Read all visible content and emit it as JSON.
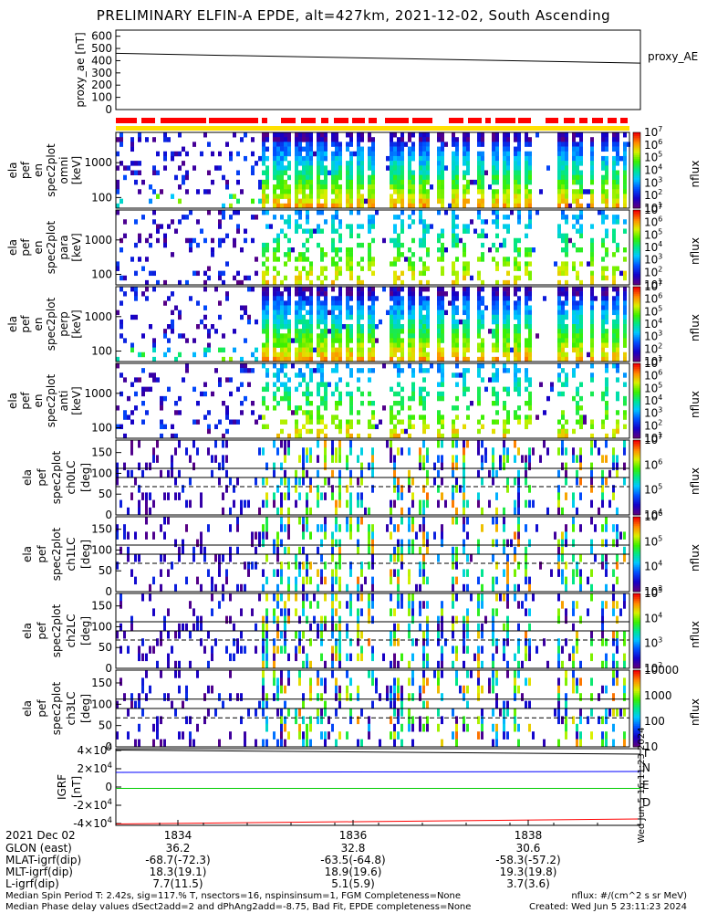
{
  "title": "PRELIMINARY ELFIN-A EPDE, alt=427km, 2021-12-02, South Ascending",
  "chart_data": [
    {
      "type": "line",
      "panel": "proxy_ae",
      "ylabel": [
        "proxy_ae",
        "[nT]"
      ],
      "yticks": [
        "0",
        "100",
        "200",
        "300",
        "400",
        "500",
        "600"
      ],
      "ylim": [
        0,
        650
      ],
      "series": [
        {
          "name": "proxy_AE",
          "x": [
            0,
            1
          ],
          "values": [
            460,
            380
          ],
          "color": "#000000"
        }
      ]
    },
    {
      "type": "heatmap",
      "panel": "ela pef en spec2plot omni",
      "ylabel": [
        "ela",
        "pef",
        "en",
        "spec2plot",
        "omni",
        "[keV]"
      ],
      "yticks": [
        "100",
        "1000"
      ],
      "colorbar": {
        "label": "nflux",
        "ticks": [
          "10^1",
          "10^2",
          "10^3",
          "10^4",
          "10^5",
          "10^6",
          "10^7"
        ]
      }
    },
    {
      "type": "heatmap",
      "panel": "ela pef en spec2plot para",
      "ylabel": [
        "ela",
        "pef",
        "en",
        "spec2plot",
        "para",
        "[keV]"
      ],
      "yticks": [
        "100",
        "1000"
      ],
      "colorbar": {
        "label": "nflux",
        "ticks": [
          "10^1",
          "10^2",
          "10^3",
          "10^4",
          "10^5",
          "10^6",
          "10^7"
        ]
      }
    },
    {
      "type": "heatmap",
      "panel": "ela pef en spec2plot perp",
      "ylabel": [
        "ela",
        "pef",
        "en",
        "spec2plot",
        "perp",
        "[keV]"
      ],
      "yticks": [
        "100",
        "1000"
      ],
      "colorbar": {
        "label": "nflux",
        "ticks": [
          "10^1",
          "10^2",
          "10^3",
          "10^4",
          "10^5",
          "10^6",
          "10^7"
        ]
      }
    },
    {
      "type": "heatmap",
      "panel": "ela pef en spec2plot anti",
      "ylabel": [
        "ela",
        "pef",
        "en",
        "spec2plot",
        "anti",
        "[keV]"
      ],
      "yticks": [
        "100",
        "1000"
      ],
      "colorbar": {
        "label": "nflux",
        "ticks": [
          "10^1",
          "10^2",
          "10^3",
          "10^4",
          "10^5",
          "10^6",
          "10^7"
        ]
      }
    },
    {
      "type": "heatmap",
      "panel": "ela pef spec2plot ch0LC",
      "ylabel": [
        "ela",
        "pef",
        "spec2plot",
        "ch0LC",
        "[deg]"
      ],
      "yticks": [
        "0",
        "50",
        "100",
        "150"
      ],
      "colorbar": {
        "label": "nflux",
        "ticks": [
          "10^4",
          "10^5",
          "10^6",
          "10^7"
        ]
      }
    },
    {
      "type": "heatmap",
      "panel": "ela pef spec2plot ch1LC",
      "ylabel": [
        "ela",
        "pef",
        "spec2plot",
        "ch1LC",
        "[deg]"
      ],
      "yticks": [
        "0",
        "50",
        "100",
        "150"
      ],
      "colorbar": {
        "label": "nflux",
        "ticks": [
          "10^3",
          "10^4",
          "10^5",
          "10^6"
        ]
      }
    },
    {
      "type": "heatmap",
      "panel": "ela pef spec2plot ch2LC",
      "ylabel": [
        "ela",
        "pef",
        "spec2plot",
        "ch2LC",
        "[deg]"
      ],
      "yticks": [
        "0",
        "50",
        "100",
        "150"
      ],
      "colorbar": {
        "label": "nflux",
        "ticks": [
          "10^2",
          "10^3",
          "10^4",
          "10^5"
        ]
      }
    },
    {
      "type": "heatmap",
      "panel": "ela pef spec2plot ch3LC",
      "ylabel": [
        "ela",
        "pef",
        "spec2plot",
        "ch3LC",
        "[deg]"
      ],
      "yticks": [
        "0",
        "50",
        "100",
        "150"
      ],
      "colorbar": {
        "label": "nflux",
        "ticks": [
          "10",
          "100",
          "1000",
          "10000"
        ]
      }
    },
    {
      "type": "line",
      "panel": "IGRF",
      "ylabel": [
        "IGRF",
        "[nT]"
      ],
      "yticks": [
        "-4×10^4",
        "-2×10^4",
        "0",
        "2×10^4",
        "4×10^4"
      ],
      "ylim": [
        -42000,
        42000
      ],
      "series": [
        {
          "name": "T",
          "x": [
            0,
            1
          ],
          "values": [
            40500,
            36000
          ],
          "color": "#000000"
        },
        {
          "name": "N",
          "x": [
            0,
            1
          ],
          "values": [
            16000,
            17000
          ],
          "color": "#0000ff"
        },
        {
          "name": "E",
          "x": [
            0,
            1
          ],
          "values": [
            -1500,
            -1500
          ],
          "color": "#00cc00"
        },
        {
          "name": "D",
          "x": [
            0,
            1
          ],
          "values": [
            -40500,
            -35000
          ],
          "color": "#ff0000"
        }
      ]
    }
  ],
  "side_label": "Wed Jun  5 16:11:23 2024",
  "xaxis": {
    "row_labels": [
      "2021 Dec 02",
      "GLON (east)",
      "MLAT-igrf(dip)",
      "MLT-igrf(dip)",
      "L-igrf(dip)"
    ],
    "columns": [
      {
        "time": "1834",
        "glon": "36.2",
        "mlat": "-68.7(-72.3)",
        "mlt": "18.3(19.1)",
        "l": "7.7(11.5)"
      },
      {
        "time": "1836",
        "glon": "32.8",
        "mlat": "-63.5(-64.8)",
        "mlt": "18.9(19.6)",
        "l": "5.1(5.9)"
      },
      {
        "time": "1838",
        "glon": "30.6",
        "mlat": "-58.3(-57.2)",
        "mlt": "19.3(19.8)",
        "l": "3.7(3.6)"
      }
    ]
  },
  "footer": {
    "line1": "Median Spin Period T: 2.42s, sig=117.% T, nsectors=16, nspinsinsum=1, FGM Completeness=None",
    "line2": "Median Phase delay values dSect2add=2 and dPhAng2add=-8.75, Bad Fit, EPDE completeness=None",
    "units": "nflux: #/(cm^2 s sr MeV)",
    "created": "Created: Wed Jun  5 23:11:23 2024"
  },
  "colors": {
    "axis": "#000000",
    "flag_red": "#ff0000",
    "flag_yellow": "#ffe000",
    "igrf_T": "#000000",
    "igrf_N": "#0000ff",
    "igrf_E": "#00cc00",
    "igrf_D": "#ff0000"
  }
}
